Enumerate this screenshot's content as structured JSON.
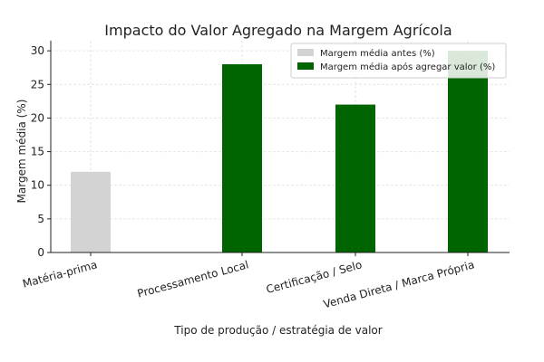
{
  "chart_data": {
    "type": "bar",
    "title": "Impacto do Valor Agregado na Margem Agrícola",
    "xlabel": "Tipo de produção / estratégia de valor",
    "ylabel": "Margem média (%)",
    "ylim": [
      0,
      31.5
    ],
    "yticks": [
      0,
      5,
      10,
      15,
      20,
      25,
      30
    ],
    "grid": true,
    "legend_position": "top-right",
    "categories": [
      "Matéria-prima",
      "Processamento Local",
      "Certificação / Selo",
      "Venda Direta / Marca Própria"
    ],
    "series": [
      {
        "name": "Margem média antes (%)",
        "color": "#d3d3d3",
        "values": [
          12,
          null,
          null,
          null
        ]
      },
      {
        "name": "Margem média após agregar valor (%)",
        "color": "#006400",
        "values": [
          null,
          28,
          22,
          30
        ]
      }
    ]
  }
}
